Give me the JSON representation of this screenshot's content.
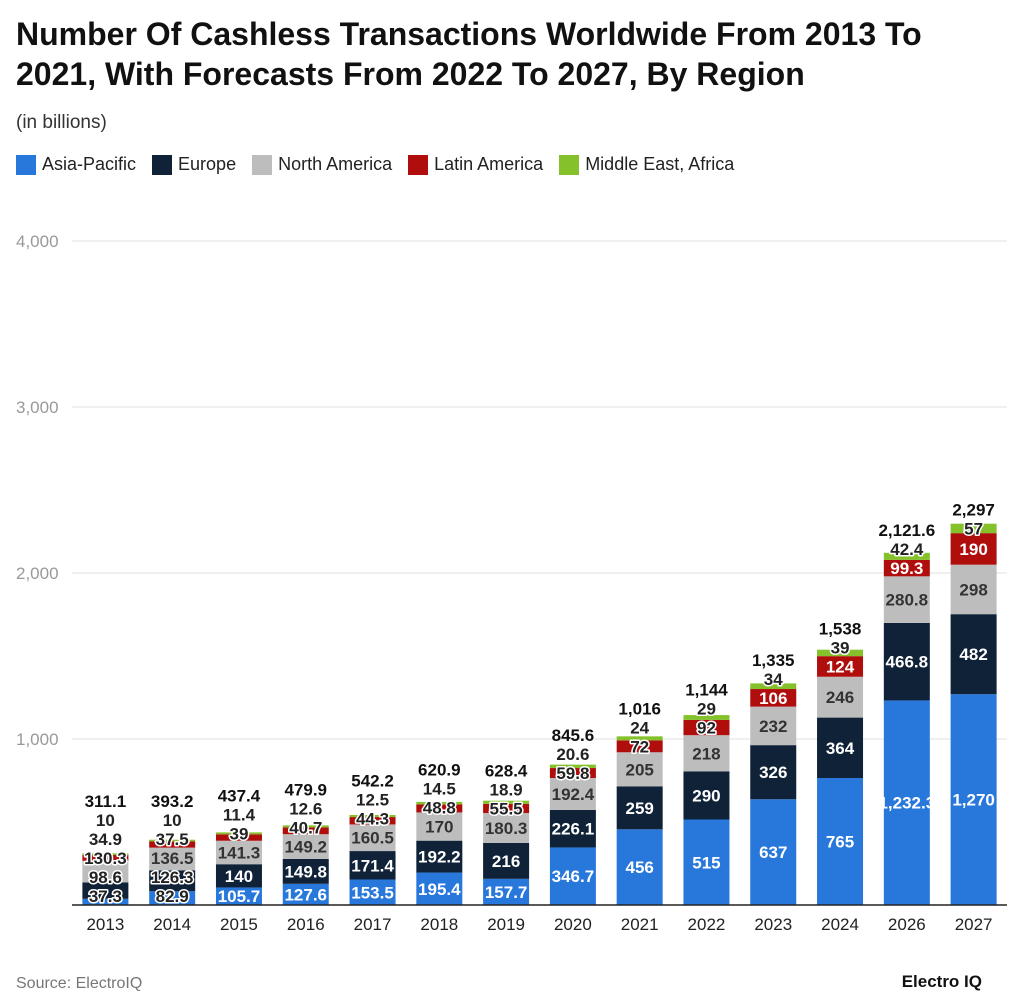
{
  "chart_data": {
    "type": "bar",
    "stacked": true,
    "title": "Number Of Cashless Transactions Worldwide From 2013 To 2021, With Forecasts From 2022 To 2027, By Region",
    "subtitle": "(in billions)",
    "categories": [
      "2013",
      "2014",
      "2015",
      "2016",
      "2017",
      "2018",
      "2019",
      "2020",
      "2021",
      "2022",
      "2023",
      "2024",
      "2026",
      "2027"
    ],
    "series": [
      {
        "name": "Asia-Pacific",
        "color": "#2878dc",
        "values": [
          37.3,
          82.9,
          105.7,
          127.6,
          153.5,
          195.4,
          157.7,
          346.7,
          456,
          515,
          637,
          765,
          1232.3,
          1270
        ]
      },
      {
        "name": "Europe",
        "color": "#0f2238",
        "values": [
          98.6,
          126.3,
          140,
          149.8,
          171.4,
          192.2,
          216,
          226.1,
          259,
          290,
          326,
          364,
          466.8,
          482
        ]
      },
      {
        "name": "North America",
        "color": "#bdbdbd",
        "values": [
          130.3,
          136.5,
          141.3,
          149.2,
          160.5,
          170,
          180.3,
          192.4,
          205,
          218,
          232,
          246,
          280.8,
          298
        ]
      },
      {
        "name": "Latin America",
        "color": "#b00d0d",
        "values": [
          34.9,
          37.5,
          39,
          40.7,
          44.3,
          48.8,
          55.5,
          59.8,
          72,
          92,
          106,
          124,
          99.3,
          190
        ]
      },
      {
        "name": "Middle East, Africa",
        "color": "#84c12a",
        "values": [
          10,
          10,
          11.4,
          12.6,
          12.5,
          14.5,
          18.9,
          20.6,
          24,
          29,
          34,
          39,
          42.4,
          57
        ]
      }
    ],
    "totals": [
      "311.1",
      "393.2",
      "437.4",
      "479.9",
      "542.2",
      "620.9",
      "628.4",
      "845.6",
      "1,016",
      "1,144",
      "1,335",
      "1,538",
      "2,121.6",
      "2,297"
    ],
    "value_labels": [
      [
        "37.3",
        "82.9",
        "105.7",
        "127.6",
        "153.5",
        "195.4",
        "157.7",
        "346.7",
        "456",
        "515",
        "637",
        "765",
        "1,232.3",
        "1,270"
      ],
      [
        "98.6",
        "126.3",
        "140",
        "149.8",
        "171.4",
        "192.2",
        "216",
        "226.1",
        "259",
        "290",
        "326",
        "364",
        "466.8",
        "482"
      ],
      [
        "130.3",
        "136.5",
        "141.3",
        "149.2",
        "160.5",
        "170",
        "180.3",
        "192.4",
        "205",
        "218",
        "232",
        "246",
        "280.8",
        "298"
      ],
      [
        "34.9",
        "37.5",
        "39",
        "40.7",
        "44.3",
        "48.8",
        "55.5",
        "59.8",
        "72",
        "92",
        "106",
        "124",
        "99.3",
        "190"
      ],
      [
        "10",
        "10",
        "11.4",
        "12.6",
        "12.5",
        "14.5",
        "18.9",
        "20.6",
        "24",
        "29",
        "34",
        "39",
        "42.4",
        "57"
      ]
    ],
    "ylim": [
      0,
      4000
    ],
    "yticks": [
      "4,000",
      "3,000",
      "2,000",
      "1,000"
    ],
    "grid": true,
    "legend": "top-left"
  },
  "source": "Source: ElectroIQ",
  "logo": "Electro IQ"
}
